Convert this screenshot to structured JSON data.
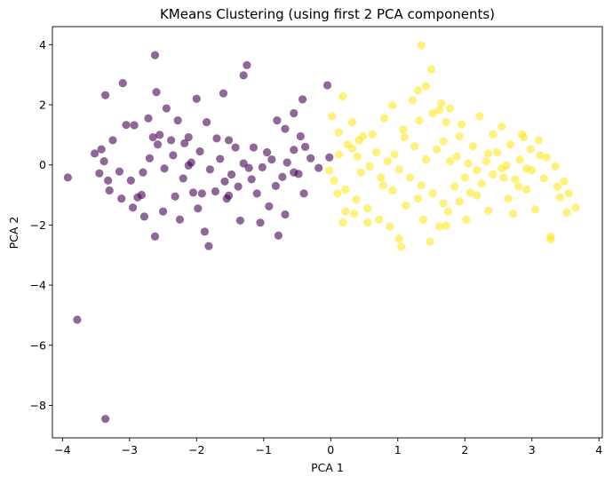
{
  "chart_data": {
    "type": "scatter",
    "title": "KMeans Clustering (using first 2 PCA components)",
    "xlabel": "PCA 1",
    "ylabel": "PCA 2",
    "xlim": [
      -4.15,
      4.05
    ],
    "ylim": [
      -9.08,
      4.6
    ],
    "xticks": [
      -4,
      -3,
      -2,
      -1,
      0,
      1,
      2,
      3,
      4
    ],
    "yticks": [
      -8,
      -6,
      -4,
      -2,
      0,
      2,
      4
    ],
    "grid": false,
    "legend": "none",
    "series": [
      {
        "color": "#440154",
        "alpha": 0.6,
        "points": [
          [
            -3.92,
            -0.42
          ],
          [
            -3.78,
            -5.15
          ],
          [
            -3.36,
            -8.45
          ],
          [
            -3.36,
            2.32
          ],
          [
            -3.1,
            2.72
          ],
          [
            -3.05,
            1.33
          ],
          [
            -2.93,
            1.32
          ],
          [
            -2.62,
            3.65
          ],
          [
            -2.6,
            2.42
          ],
          [
            -2.45,
            1.88
          ],
          [
            -2.28,
            1.48
          ],
          [
            -2.12,
            0.92
          ],
          [
            -1.85,
            1.42
          ],
          [
            -1.7,
            0.88
          ],
          [
            -1.58,
            -0.55
          ],
          [
            -1.52,
            0.82
          ],
          [
            -1.38,
            -0.72
          ],
          [
            -1.15,
            0.58
          ],
          [
            -0.88,
            0.18
          ],
          [
            -0.68,
            1.2
          ],
          [
            -0.55,
            1.72
          ],
          [
            -0.42,
            2.18
          ],
          [
            -0.05,
            2.65
          ],
          [
            -0.02,
            0.25
          ],
          [
            -0.45,
            0.95
          ],
          [
            -0.38,
            0.6
          ],
          [
            -0.72,
            -0.4
          ],
          [
            -0.92,
            -1.38
          ],
          [
            -0.78,
            -2.35
          ],
          [
            -1.05,
            -1.92
          ],
          [
            -1.35,
            -1.85
          ],
          [
            -1.55,
            -1.12
          ],
          [
            -1.82,
            -2.7
          ],
          [
            -1.88,
            -2.22
          ],
          [
            -1.98,
            -1.45
          ],
          [
            -2.05,
            -0.92
          ],
          [
            -2.25,
            -1.82
          ],
          [
            -2.5,
            -1.55
          ],
          [
            -2.62,
            -2.38
          ],
          [
            -2.78,
            -1.72
          ],
          [
            -2.82,
            -1.0
          ],
          [
            -2.95,
            -1.42
          ],
          [
            -3.12,
            -1.12
          ],
          [
            -3.3,
            -0.85
          ],
          [
            -3.32,
            -0.52
          ],
          [
            -3.45,
            -0.28
          ],
          [
            -3.38,
            0.12
          ],
          [
            -3.42,
            0.52
          ],
          [
            -3.25,
            0.82
          ],
          [
            -3.15,
            -0.22
          ],
          [
            -2.98,
            -0.52
          ],
          [
            -2.8,
            -0.25
          ],
          [
            -2.7,
            0.22
          ],
          [
            -2.58,
            0.68
          ],
          [
            -2.48,
            -0.12
          ],
          [
            -2.35,
            0.32
          ],
          [
            -2.2,
            -0.45
          ],
          [
            -2.08,
            0.08
          ],
          [
            -1.95,
            0.45
          ],
          [
            -1.8,
            -0.15
          ],
          [
            -1.65,
            0.2
          ],
          [
            -1.48,
            -0.32
          ],
          [
            -1.3,
            0.05
          ],
          [
            -1.18,
            -0.48
          ],
          [
            -1.02,
            -0.08
          ],
          [
            -0.95,
            0.42
          ],
          [
            -0.82,
            -0.7
          ],
          [
            -0.65,
            0.08
          ],
          [
            -0.55,
            -0.25
          ],
          [
            -0.4,
            -0.95
          ],
          [
            -0.3,
            0.22
          ],
          [
            -1.6,
            2.38
          ],
          [
            -2.0,
            2.2
          ],
          [
            -2.72,
            1.55
          ],
          [
            -2.55,
            1.0
          ],
          [
            -2.38,
            0.82
          ],
          [
            -2.18,
            0.72
          ],
          [
            -1.72,
            -0.88
          ],
          [
            -1.42,
            0.58
          ],
          [
            -1.25,
            3.32
          ],
          [
            -1.3,
            2.98
          ],
          [
            -0.8,
            1.48
          ],
          [
            -0.55,
            0.5
          ],
          [
            -3.52,
            0.38
          ],
          [
            -2.88,
            -1.08
          ],
          [
            -2.32,
            -1.05
          ],
          [
            -1.92,
            -0.95
          ],
          [
            -1.1,
            -0.95
          ],
          [
            -0.68,
            -1.65
          ],
          [
            -0.18,
            -0.1
          ],
          [
            -2.65,
            0.92
          ],
          [
            -2.12,
            -0.02
          ],
          [
            -1.52,
            -1.02
          ],
          [
            -1.22,
            -0.1
          ],
          [
            -0.48,
            -0.3
          ]
        ]
      },
      {
        "color": "#fde725",
        "alpha": 0.6,
        "points": [
          [
            1.35,
            3.98
          ],
          [
            1.5,
            3.18
          ],
          [
            1.42,
            2.62
          ],
          [
            1.3,
            2.48
          ],
          [
            1.22,
            2.15
          ],
          [
            1.65,
            2.05
          ],
          [
            1.78,
            1.88
          ],
          [
            2.22,
            1.62
          ],
          [
            2.55,
            1.28
          ],
          [
            2.88,
            0.92
          ],
          [
            3.1,
            0.82
          ],
          [
            3.22,
            0.25
          ],
          [
            3.35,
            -0.05
          ],
          [
            3.48,
            -0.55
          ],
          [
            3.55,
            -0.95
          ],
          [
            3.65,
            -1.42
          ],
          [
            3.52,
            -1.58
          ],
          [
            3.28,
            -2.38
          ],
          [
            3.28,
            -2.48
          ],
          [
            3.05,
            -1.48
          ],
          [
            2.92,
            -0.82
          ],
          [
            2.75,
            -0.48
          ],
          [
            2.55,
            -0.12
          ],
          [
            2.35,
            0.38
          ],
          [
            2.12,
            0.62
          ],
          [
            1.92,
            0.95
          ],
          [
            1.72,
            1.42
          ],
          [
            1.52,
            1.72
          ],
          [
            1.32,
            1.48
          ],
          [
            1.08,
            1.18
          ],
          [
            0.92,
            1.98
          ],
          [
            0.8,
            1.55
          ],
          [
            0.62,
            1.02
          ],
          [
            0.42,
            0.82
          ],
          [
            0.32,
            0.55
          ],
          [
            0.12,
            0.35
          ],
          [
            -0.02,
            -0.18
          ],
          [
            0.05,
            -0.52
          ],
          [
            0.22,
            -0.82
          ],
          [
            0.38,
            -1.15
          ],
          [
            0.55,
            -1.45
          ],
          [
            0.72,
            -1.82
          ],
          [
            0.88,
            -2.05
          ],
          [
            1.02,
            -2.45
          ],
          [
            1.05,
            -2.72
          ],
          [
            1.48,
            -2.55
          ],
          [
            1.62,
            -2.05
          ],
          [
            1.75,
            -1.55
          ],
          [
            1.92,
            -1.22
          ],
          [
            2.08,
            -0.92
          ],
          [
            2.25,
            -0.62
          ],
          [
            2.42,
            -0.32
          ],
          [
            2.62,
            -0.02
          ],
          [
            2.82,
            0.18
          ],
          [
            3.0,
            -0.18
          ],
          [
            3.18,
            -0.45
          ],
          [
            3.38,
            -0.72
          ],
          [
            2.65,
            -1.12
          ],
          [
            2.35,
            -1.52
          ],
          [
            2.02,
            -1.82
          ],
          [
            1.72,
            -2.02
          ],
          [
            1.38,
            -1.82
          ],
          [
            1.12,
            -1.35
          ],
          [
            0.92,
            -0.85
          ],
          [
            0.75,
            -0.42
          ],
          [
            0.58,
            -0.05
          ],
          [
            0.4,
            0.28
          ],
          [
            0.25,
            0.68
          ],
          [
            0.12,
            1.08
          ],
          [
            0.02,
            1.62
          ],
          [
            0.18,
            2.28
          ],
          [
            0.32,
            1.42
          ],
          [
            0.48,
            0.95
          ],
          [
            0.68,
            0.42
          ],
          [
            0.85,
            0.12
          ],
          [
            1.02,
            -0.15
          ],
          [
            1.18,
            -0.42
          ],
          [
            1.35,
            -0.68
          ],
          [
            1.52,
            -0.95
          ],
          [
            1.68,
            -1.28
          ],
          [
            1.85,
            -0.72
          ],
          [
            2.0,
            -0.42
          ],
          [
            2.18,
            -0.18
          ],
          [
            2.32,
            0.12
          ],
          [
            2.48,
            0.42
          ],
          [
            2.68,
            0.68
          ],
          [
            2.85,
            1.02
          ],
          [
            2.98,
            0.52
          ],
          [
            1.58,
            0.52
          ],
          [
            1.42,
            0.18
          ],
          [
            1.25,
            0.62
          ],
          [
            1.1,
            0.92
          ],
          [
            1.88,
            0.28
          ],
          [
            2.05,
            0.05
          ],
          [
            1.68,
            0.78
          ],
          [
            0.35,
            -1.62
          ],
          [
            0.18,
            -1.92
          ],
          [
            0.55,
            -1.92
          ],
          [
            0.22,
            -1.55
          ],
          [
            2.8,
            -0.72
          ],
          [
            2.58,
            -0.42
          ],
          [
            3.12,
            0.32
          ],
          [
            2.42,
            1.02
          ],
          [
            1.95,
            1.35
          ],
          [
            1.62,
            1.82
          ],
          [
            0.78,
            -0.68
          ],
          [
            0.95,
            0.35
          ],
          [
            1.3,
            -1.12
          ],
          [
            2.18,
            -1.02
          ],
          [
            2.72,
            -1.62
          ],
          [
            3.42,
            -1.08
          ],
          [
            0.1,
            -0.95
          ],
          [
            0.45,
            -0.25
          ],
          [
            2.92,
            -0.12
          ],
          [
            1.78,
            0.12
          ]
        ]
      }
    ]
  }
}
